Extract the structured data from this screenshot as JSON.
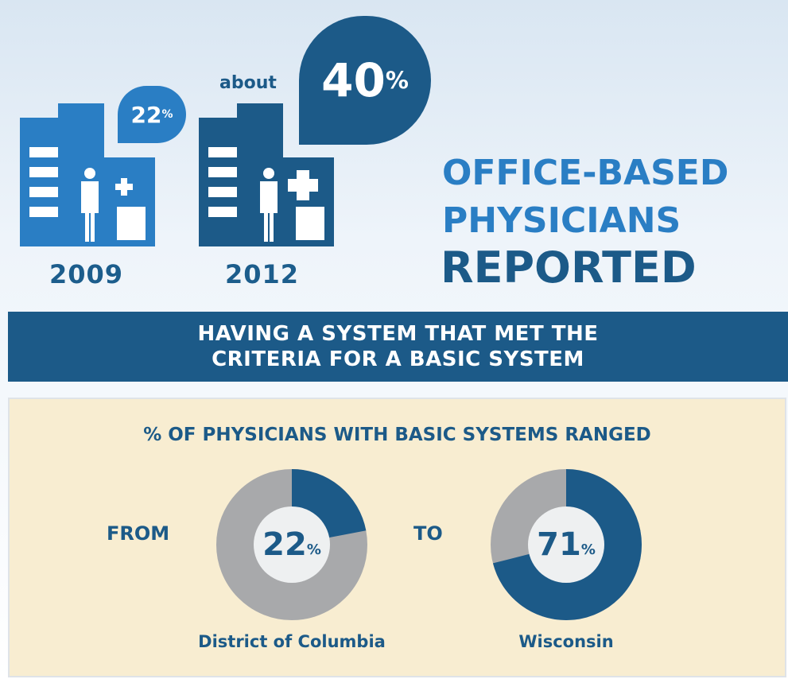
{
  "header": {
    "left": {
      "percent": "22",
      "percent_sign": "%",
      "year": "2009"
    },
    "right": {
      "prefix": "about",
      "percent": "40",
      "percent_sign": "%",
      "year": "2012"
    },
    "heading": {
      "line1": "OFFICE-BASED",
      "line2": "PHYSICIANS",
      "line3": "REPORTED"
    }
  },
  "banner": {
    "line1": "HAVING A SYSTEM THAT MET THE",
    "line2": "CRITERIA FOR A BASIC SYSTEM"
  },
  "range": {
    "title": "% OF PHYSICIANS WITH BASIC SYSTEMS RANGED",
    "from_label": "FROM",
    "to_label": "TO",
    "low": {
      "value": 22,
      "display": "22",
      "percent_sign": "%",
      "place": "District of Columbia"
    },
    "high": {
      "value": 71,
      "display": "71",
      "percent_sign": "%",
      "place": "Wisconsin"
    }
  },
  "icons": {
    "building": "hospital-building-icon",
    "doctor": "physician-icon",
    "cross": "medical-cross-icon"
  },
  "colors": {
    "light_blue": "#2a7ec4",
    "dark_blue": "#1c5a88",
    "gray": "#a8a9ab",
    "panel_bg": "#f8edd1"
  }
}
